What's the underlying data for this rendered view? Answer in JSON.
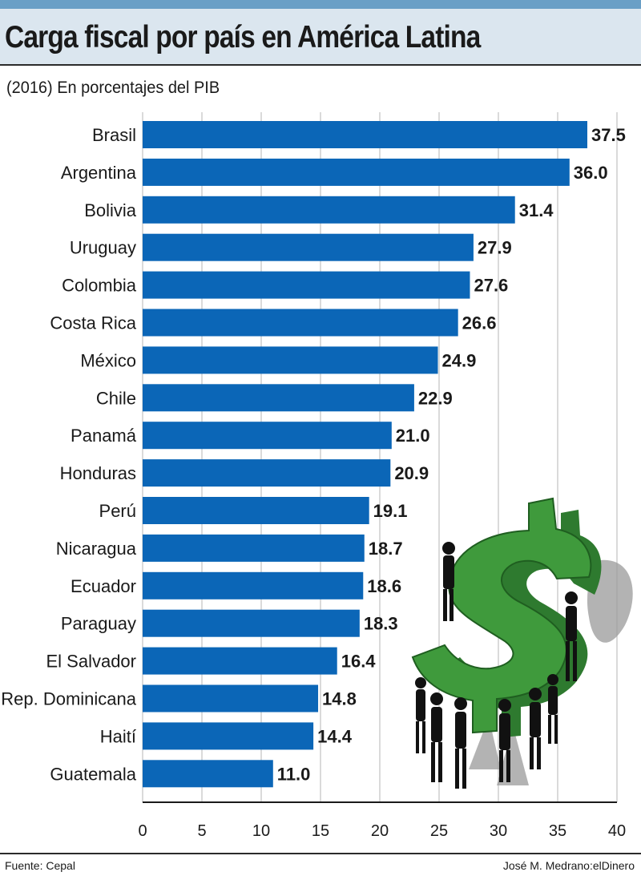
{
  "header": {
    "title": "Carga fiscal por país en América Latina",
    "subtitle": "(2016) En porcentajes del PIB"
  },
  "footer": {
    "source": "Fuente: Cepal",
    "credit": "José M. Medrano:elDinero"
  },
  "colors": {
    "bar": "#0b66b7",
    "title_band": "#dbe6ef",
    "top_band": "#6a9fc6",
    "illustration_green": "#3f9a3c"
  },
  "illustration": "green-dollar-sign-carried-by-silhouettes",
  "chart_data": {
    "type": "bar",
    "orientation": "horizontal",
    "title": "Carga fiscal por país en América Latina",
    "subtitle": "(2016) En porcentajes del PIB",
    "categories": [
      "Brasil",
      "Argentina",
      "Bolivia",
      "Uruguay",
      "Colombia",
      "Costa Rica",
      "México",
      "Chile",
      "Panamá",
      "Honduras",
      "Perú",
      "Nicaragua",
      "Ecuador",
      "Paraguay",
      "El Salvador",
      "Rep. Dominicana",
      "Haití",
      "Guatemala"
    ],
    "values": [
      37.5,
      36.0,
      31.4,
      27.9,
      27.6,
      26.6,
      24.9,
      22.9,
      21.0,
      20.9,
      19.1,
      18.7,
      18.6,
      18.3,
      16.4,
      14.8,
      14.4,
      11.0
    ],
    "value_labels": [
      "37.5",
      "36.0",
      "31.4",
      "27.9",
      "27.6",
      "26.6",
      "24.9",
      "22.9",
      "21.0",
      "20.9",
      "19.1",
      "18.7",
      "18.6",
      "18.3",
      "16.4",
      "14.8",
      "14.4",
      "11.0"
    ],
    "xlim": [
      0,
      40
    ],
    "x_ticks": [
      "0",
      "5",
      "10",
      "15",
      "20",
      "25",
      "30",
      "35",
      "40"
    ],
    "xlabel": "",
    "ylabel": "",
    "grid": true,
    "legend": "none"
  }
}
